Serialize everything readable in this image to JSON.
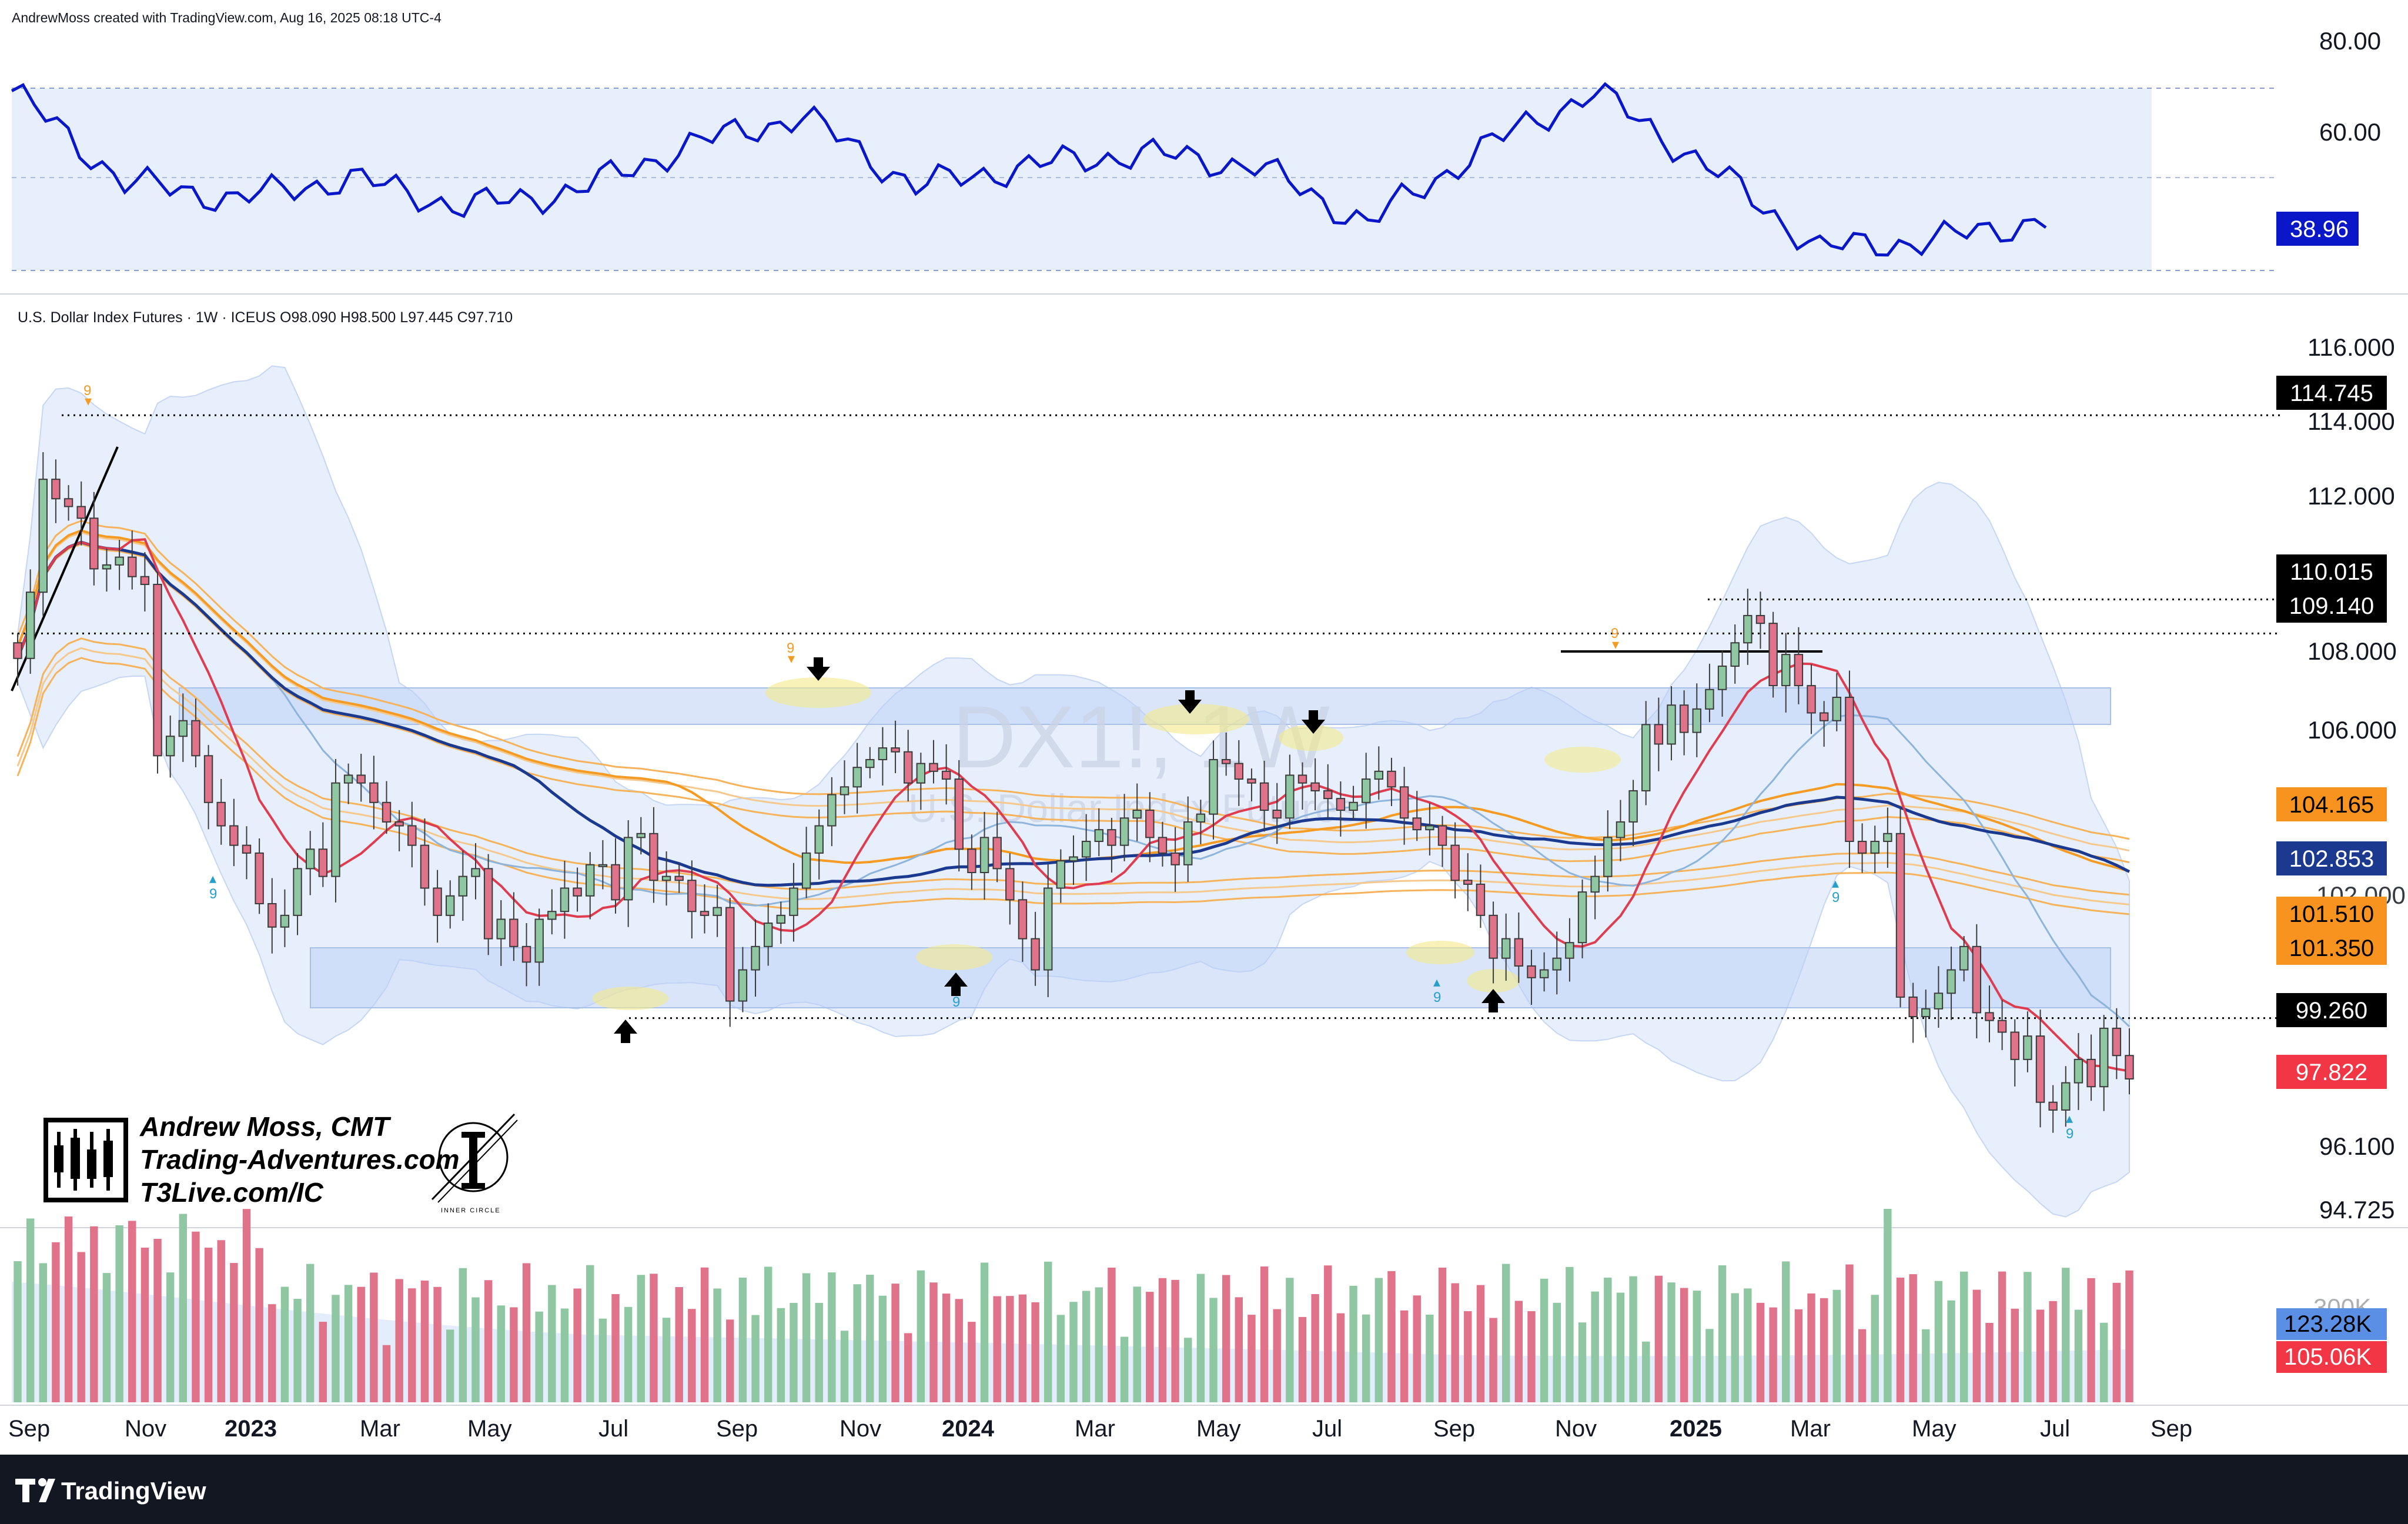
{
  "header": {
    "credit": "AndrewMoss created with TradingView.com, Aug 16, 2025 08:18 UTC-4",
    "symbol_line": "U.S. Dollar Index Futures · 1W · ICEUS  O98.090  H98.500  L97.445  C97.710"
  },
  "watermark": {
    "ticker": "DX1!, 1W",
    "name": "U.S. Dollar Index Futures"
  },
  "brand": {
    "name": "Andrew Moss, CMT",
    "site": "Trading-Adventures.com",
    "site2": "T3Live.com/IC",
    "inner_circle": "INNER CIRCLE"
  },
  "footer": {
    "logo_text": "TradingView"
  },
  "colors": {
    "up": "#8fc7a3",
    "down": "#e0728a",
    "rsi": "#0a17c8",
    "ma_fast": "#e03c50",
    "ma_mid": "#1b3a8f",
    "ma_orange": "#f59a23",
    "band_fill": "#dbe6fb"
  },
  "chart_data": [
    {
      "type": "line",
      "name": "RSI",
      "ylim": [
        26,
        82
      ],
      "y_ticks": [
        "80.00",
        "60.00"
      ],
      "last_value": "38.96",
      "x": [
        "Sep 2022",
        "Nov 2022",
        "Jan 2023",
        "Mar 2023",
        "May 2023",
        "Jul 2023",
        "Sep 2023",
        "Nov 2023",
        "Jan 2024",
        "Mar 2024",
        "May 2024",
        "Jul 2024",
        "Sep 2024",
        "Nov 2024",
        "Jan 2025",
        "Mar 2025",
        "May 2025",
        "Jul 2025",
        "Aug 2025"
      ],
      "values": [
        70,
        48,
        44,
        49,
        42,
        46,
        57,
        64,
        47,
        52,
        55,
        52,
        38,
        56,
        70,
        52,
        32,
        34,
        39
      ]
    },
    {
      "type": "candlestick",
      "name": "U.S. Dollar Index Futures",
      "ylim": [
        94,
        116.5
      ],
      "y_ticks": [
        "116.000",
        "114.000",
        "112.000",
        "108.000",
        "106.000",
        "102.000",
        "96.100",
        "94.725"
      ],
      "x_ticks": [
        "Sep",
        "Nov",
        "2023",
        "Mar",
        "May",
        "Jul",
        "Sep",
        "Nov",
        "2024",
        "Mar",
        "May",
        "Jul",
        "Sep",
        "Nov",
        "2025",
        "Mar",
        "May",
        "Jul",
        "Sep"
      ],
      "price_tags": [
        {
          "label": "114.745",
          "value": 114.745,
          "bg": "#000000",
          "fg": "#ffffff"
        },
        {
          "label": "110.015",
          "value": 110.015,
          "bg": "#000000",
          "fg": "#ffffff"
        },
        {
          "label": "109.140",
          "value": 109.14,
          "bg": "#000000",
          "fg": "#ffffff"
        },
        {
          "label": "104.165",
          "value": 104.165,
          "bg": "#f7931e",
          "fg": "#000000"
        },
        {
          "label": "102.853",
          "value": 102.853,
          "bg": "#1b3a8f",
          "fg": "#ffffff"
        },
        {
          "label": "101.510",
          "value": 101.51,
          "bg": "#f7931e",
          "fg": "#000000"
        },
        {
          "label": "101.350",
          "value": 101.35,
          "bg": "#f7931e",
          "fg": "#000000"
        },
        {
          "label": "99.260",
          "value": 99.26,
          "bg": "#000000",
          "fg": "#ffffff"
        },
        {
          "label": "97.822",
          "value": 97.822,
          "bg": "#f23645",
          "fg": "#ffffff"
        }
      ],
      "levels": [
        114.745,
        110.015,
        109.14,
        99.26
      ],
      "last": {
        "open": 98.09,
        "high": 98.5,
        "low": 97.445,
        "close": 97.71
      },
      "approx_weekly_closes": [
        108.5,
        110.2,
        113.1,
        112.6,
        112.4,
        112.1,
        110.8,
        110.9,
        111.1,
        110.6,
        110.4,
        106.0,
        106.5,
        106.9,
        106.0,
        104.8,
        104.2,
        103.7,
        103.5,
        102.2,
        101.6,
        101.9,
        103.1,
        103.6,
        102.9,
        105.3,
        105.5,
        105.3,
        104.8,
        104.3,
        104.2,
        103.7,
        102.6,
        101.9,
        102.4,
        102.9,
        103.1,
        101.3,
        101.8,
        101.1,
        100.7,
        101.8,
        102.0,
        102.6,
        102.4,
        103.2,
        103.2,
        102.3,
        103.9,
        104.0,
        102.8,
        102.9,
        102.8,
        102.0,
        101.9,
        102.1,
        99.7,
        100.5,
        101.1,
        101.7,
        101.9,
        102.6,
        103.5,
        104.2,
        105.0,
        105.2,
        105.7,
        105.9,
        106.2,
        106.1,
        105.3,
        105.8,
        105.6,
        105.4,
        103.6,
        103.0,
        103.9,
        103.1,
        102.3,
        101.3,
        100.5,
        102.6,
        103.3,
        103.4,
        103.8,
        104.1,
        103.7,
        104.4,
        104.6,
        103.9,
        103.5,
        103.2,
        104.3,
        104.5,
        105.9,
        105.8,
        105.4,
        105.3,
        104.6,
        104.4,
        105.5,
        105.3,
        105.1,
        104.9,
        104.6,
        104.8,
        105.4,
        105.6,
        105.2,
        104.4,
        104.1,
        104.2,
        103.7,
        102.8,
        102.7,
        101.9,
        100.8,
        101.3,
        100.6,
        100.3,
        100.5,
        100.8,
        101.2,
        102.5,
        102.9,
        103.9,
        104.3,
        105.1,
        106.8,
        106.3,
        107.3,
        106.6,
        107.2,
        107.7,
        108.3,
        108.9,
        109.6,
        109.4,
        107.8,
        108.6,
        107.8,
        107.1,
        106.9,
        107.5,
        103.8,
        103.5,
        103.8,
        104.0,
        99.8,
        99.3,
        99.5,
        99.9,
        100.5,
        101.1,
        99.4,
        99.2,
        98.9,
        98.2,
        98.8,
        97.1,
        96.9,
        97.6,
        98.2,
        97.5,
        99.0,
        98.3,
        97.7
      ]
    },
    {
      "type": "bar",
      "name": "Volume",
      "last_values": [
        "123.28K",
        "105.06K"
      ]
    }
  ]
}
